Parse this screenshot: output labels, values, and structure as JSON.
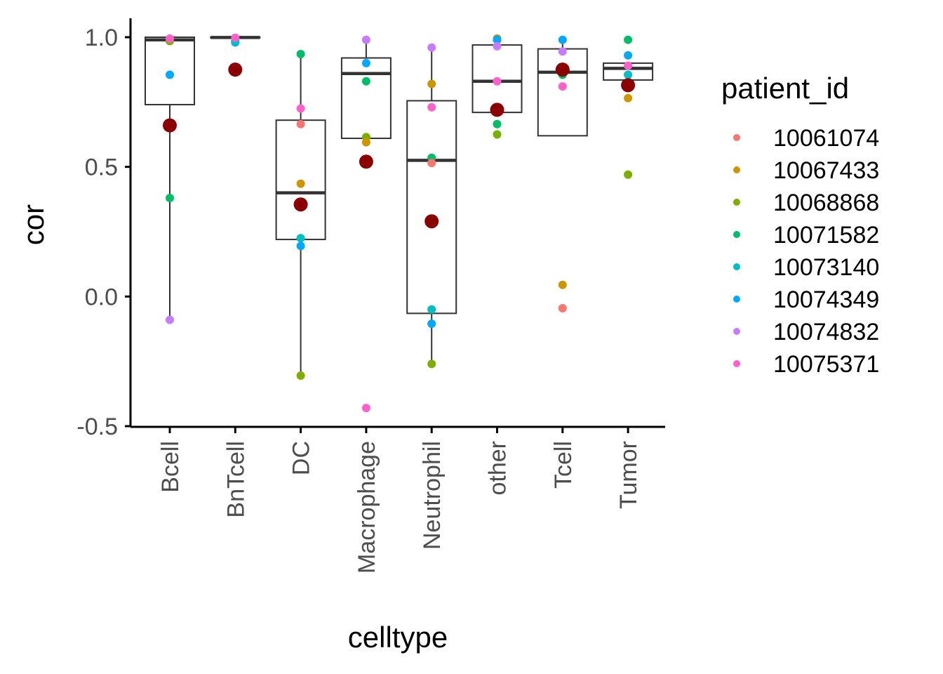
{
  "chart_data": {
    "type": "boxplot",
    "xlabel": "celltype",
    "ylabel": "cor",
    "ylim": [
      -0.5,
      1.0
    ],
    "yticks": [
      "-0.5",
      "0.0",
      "0.5",
      "1.0"
    ],
    "categories": [
      "Bcell",
      "BnTcell",
      "DC",
      "Macrophage",
      "Neutrophil",
      "other",
      "Tcell",
      "Tumor"
    ],
    "legend": {
      "title": "patient_id",
      "position": "right",
      "entries": [
        {
          "label": "10061074",
          "color": "#F8766D"
        },
        {
          "label": "10067433",
          "color": "#CD9600"
        },
        {
          "label": "10068868",
          "color": "#7CAE00"
        },
        {
          "label": "10071582",
          "color": "#00BE67"
        },
        {
          "label": "10073140",
          "color": "#00BFC4"
        },
        {
          "label": "10074349",
          "color": "#00A9FF"
        },
        {
          "label": "10074832",
          "color": "#C77CFF"
        },
        {
          "label": "10075371",
          "color": "#FF61CC"
        }
      ]
    },
    "mean_point_color": "#8B0000",
    "boxes": [
      {
        "category": "Bcell",
        "whisker_low": -0.09,
        "q1": 0.74,
        "median": 0.99,
        "q3": 1.0,
        "whisker_high": 1.0,
        "mean": 0.66
      },
      {
        "category": "BnTcell",
        "whisker_low": 0.998,
        "q1": 0.998,
        "median": 0.999,
        "q3": 1.0,
        "whisker_high": 1.0,
        "mean": 0.875
      },
      {
        "category": "DC",
        "whisker_low": -0.31,
        "q1": 0.22,
        "median": 0.4,
        "q3": 0.68,
        "whisker_high": 0.93,
        "mean": 0.355
      },
      {
        "category": "Macrophage",
        "whisker_low": 0.61,
        "q1": 0.61,
        "median": 0.86,
        "q3": 0.92,
        "whisker_high": 0.99,
        "mean": 0.52
      },
      {
        "category": "Neutrophil",
        "whisker_low": -0.26,
        "q1": -0.065,
        "median": 0.525,
        "q3": 0.755,
        "whisker_high": 0.96,
        "mean": 0.29
      },
      {
        "category": "other",
        "whisker_low": 0.71,
        "q1": 0.71,
        "median": 0.83,
        "q3": 0.97,
        "whisker_high": 0.99,
        "mean": 0.72
      },
      {
        "category": "Tcell",
        "whisker_low": 0.62,
        "q1": 0.62,
        "median": 0.865,
        "q3": 0.955,
        "whisker_high": 0.99,
        "mean": 0.875
      },
      {
        "category": "Tumor",
        "whisker_low": 0.835,
        "q1": 0.835,
        "median": 0.88,
        "q3": 0.9,
        "whisker_high": 0.9,
        "mean": 0.815
      }
    ],
    "points": [
      {
        "category": "Bcell",
        "patient": "10071582",
        "value": 0.38
      },
      {
        "category": "Bcell",
        "patient": "10074349",
        "value": 0.855
      },
      {
        "category": "Bcell",
        "patient": "10068868",
        "value": 0.985
      },
      {
        "category": "Bcell",
        "patient": "10075371",
        "value": 0.995
      },
      {
        "category": "Bcell",
        "patient": "10074832",
        "value": -0.09
      },
      {
        "category": "BnTcell",
        "patient": "10074349",
        "value": 0.98
      },
      {
        "category": "BnTcell",
        "patient": "10073140",
        "value": 0.985
      },
      {
        "category": "BnTcell",
        "patient": "10075371",
        "value": 0.998
      },
      {
        "category": "DC",
        "patient": "10071582",
        "value": 0.935
      },
      {
        "category": "DC",
        "patient": "10075371",
        "value": 0.725
      },
      {
        "category": "DC",
        "patient": "10061074",
        "value": 0.665
      },
      {
        "category": "DC",
        "patient": "10067433",
        "value": 0.435
      },
      {
        "category": "DC",
        "patient": "10073140",
        "value": 0.225
      },
      {
        "category": "DC",
        "patient": "10074349",
        "value": 0.195
      },
      {
        "category": "DC",
        "patient": "10068868",
        "value": -0.305
      },
      {
        "category": "Macrophage",
        "patient": "10074832",
        "value": 0.99
      },
      {
        "category": "Macrophage",
        "patient": "10074349",
        "value": 0.9
      },
      {
        "category": "Macrophage",
        "patient": "10071582",
        "value": 0.83
      },
      {
        "category": "Macrophage",
        "patient": "10068868",
        "value": 0.615
      },
      {
        "category": "Macrophage",
        "patient": "10067433",
        "value": 0.595
      },
      {
        "category": "Macrophage",
        "patient": "10075371",
        "value": -0.43
      },
      {
        "category": "Neutrophil",
        "patient": "10074832",
        "value": 0.96
      },
      {
        "category": "Neutrophil",
        "patient": "10067433",
        "value": 0.82
      },
      {
        "category": "Neutrophil",
        "patient": "10075371",
        "value": 0.73
      },
      {
        "category": "Neutrophil",
        "patient": "10071582",
        "value": 0.535
      },
      {
        "category": "Neutrophil",
        "patient": "10061074",
        "value": 0.515
      },
      {
        "category": "Neutrophil",
        "patient": "10073140",
        "value": -0.05
      },
      {
        "category": "Neutrophil",
        "patient": "10074349",
        "value": -0.105
      },
      {
        "category": "Neutrophil",
        "patient": "10068868",
        "value": -0.26
      },
      {
        "category": "other",
        "patient": "10067433",
        "value": 0.995
      },
      {
        "category": "other",
        "patient": "10074349",
        "value": 0.99
      },
      {
        "category": "other",
        "patient": "10074832",
        "value": 0.965
      },
      {
        "category": "other",
        "patient": "10075371",
        "value": 0.83
      },
      {
        "category": "other",
        "patient": "10071582",
        "value": 0.665
      },
      {
        "category": "other",
        "patient": "10068868",
        "value": 0.625
      },
      {
        "category": "Tcell",
        "patient": "10074349",
        "value": 0.99
      },
      {
        "category": "Tcell",
        "patient": "10074832",
        "value": 0.945
      },
      {
        "category": "Tcell",
        "patient": "10071582",
        "value": 0.855
      },
      {
        "category": "Tcell",
        "patient": "10075371",
        "value": 0.81
      },
      {
        "category": "Tcell",
        "patient": "10067433",
        "value": 0.045
      },
      {
        "category": "Tcell",
        "patient": "10061074",
        "value": -0.045
      },
      {
        "category": "Tumor",
        "patient": "10071582",
        "value": 0.99
      },
      {
        "category": "Tumor",
        "patient": "10074349",
        "value": 0.93
      },
      {
        "category": "Tumor",
        "patient": "10075371",
        "value": 0.89
      },
      {
        "category": "Tumor",
        "patient": "10073140",
        "value": 0.855
      },
      {
        "category": "Tumor",
        "patient": "10067433",
        "value": 0.765
      },
      {
        "category": "Tumor",
        "patient": "10068868",
        "value": 0.47
      }
    ]
  }
}
